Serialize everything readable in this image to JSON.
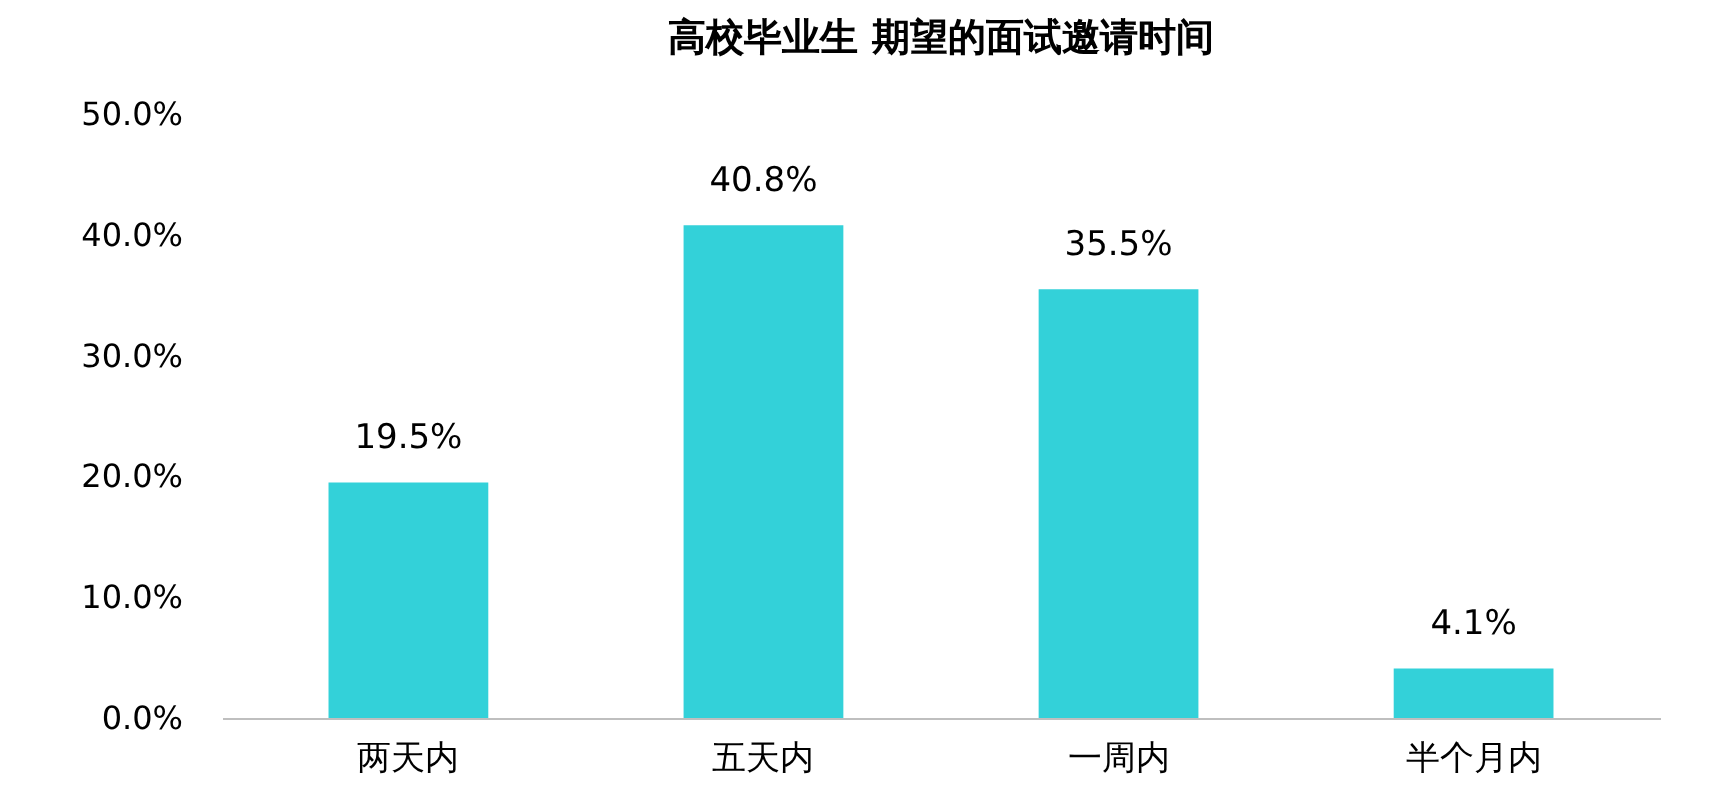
{
  "chart_data": {
    "type": "bar",
    "title": "高校毕业生  期望的面试邀请时间",
    "categories": [
      "两天内",
      "五天内",
      "一周内",
      "半个月内"
    ],
    "values": [
      19.5,
      40.8,
      35.5,
      4.1
    ],
    "value_labels": [
      "19.5%",
      "40.8%",
      "35.5%",
      "4.1%"
    ],
    "color": "#33d1d9",
    "ylim": [
      0,
      50
    ],
    "yticks": [
      {
        "value": 0,
        "label": "0.0%"
      },
      {
        "value": 10,
        "label": "10.0%"
      },
      {
        "value": 20,
        "label": "20.0%"
      },
      {
        "value": 30,
        "label": "30.0%"
      },
      {
        "value": 40,
        "label": "40.0%"
      },
      {
        "value": 50,
        "label": "50.0%"
      }
    ],
    "grid": false
  }
}
